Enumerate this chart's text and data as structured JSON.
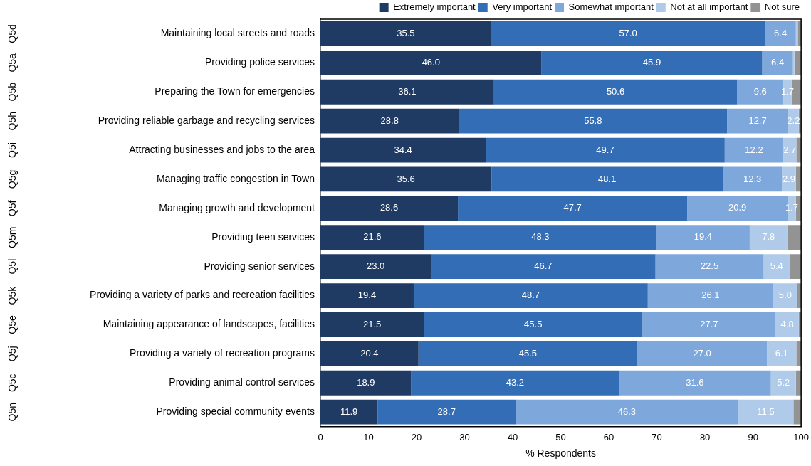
{
  "chart_data": {
    "type": "bar",
    "orientation": "horizontal",
    "stacked": true,
    "xlabel": "% Respondents",
    "categories": [
      "Maintaining local streets and roads",
      "Providing police services",
      "Preparing the Town for emergencies",
      "Providing reliable garbage and recycling services",
      "Attracting businesses and jobs to the area",
      "Managing traffic congestion in Town",
      "Managing growth and development",
      "Providing teen services",
      "Providing senior services",
      "Providing a variety of parks and recreation facilities",
      "Maintaining appearance of landscapes, facilities",
      "Providing a variety of recreation programs",
      "Providing animal control services",
      "Providing special community events"
    ],
    "series": [
      {
        "name": "Extremely important",
        "color": "#1f3a63",
        "values": [
          35.5,
          46.0,
          36.1,
          28.8,
          34.4,
          35.6,
          28.6,
          21.6,
          23.0,
          19.4,
          21.5,
          20.4,
          18.9,
          11.9
        ],
        "value_labels": [
          "35.5",
          "46.0",
          "36.1",
          "28.8",
          "34.4",
          "35.6",
          "28.6",
          "21.6",
          "23.0",
          "19.4",
          "21.5",
          "20.4",
          "18.9",
          "11.9"
        ]
      },
      {
        "name": "Very important",
        "color": "#336db5",
        "values": [
          57.0,
          45.9,
          50.6,
          55.8,
          49.7,
          48.1,
          47.7,
          48.3,
          46.7,
          48.7,
          45.5,
          45.5,
          43.2,
          28.7
        ],
        "value_labels": [
          "57.0",
          "45.9",
          "50.6",
          "55.8",
          "49.7",
          "48.1",
          "47.7",
          "48.3",
          "46.7",
          "48.7",
          "45.5",
          "45.5",
          "43.2",
          "28.7"
        ]
      },
      {
        "name": "Somewhat important",
        "color": "#7ea8dc",
        "values": [
          6.4,
          6.4,
          9.6,
          12.7,
          12.2,
          12.3,
          20.9,
          19.4,
          22.5,
          26.1,
          27.7,
          27.0,
          31.6,
          46.3
        ],
        "value_labels": [
          "6.4",
          "6.4",
          "9.6",
          "12.7",
          "12.2",
          "12.3",
          "20.9",
          "19.4",
          "22.5",
          "26.1",
          "27.7",
          "27.0",
          "31.6",
          "46.3"
        ]
      },
      {
        "name": "Not at all important",
        "color": "#b0cbe9",
        "values": [
          0.4,
          0.3,
          1.7,
          2.2,
          2.7,
          2.9,
          1.7,
          7.8,
          5.4,
          5.0,
          4.8,
          6.1,
          5.2,
          11.5
        ],
        "value_labels": [
          null,
          null,
          "1.7",
          "2.2",
          "2.7",
          "2.9",
          "1.7",
          "7.8",
          "5.4",
          "5.0",
          "4.8",
          "6.1",
          "5.2",
          "11.5"
        ]
      },
      {
        "name": "Not sure",
        "color": "#939393",
        "values": [
          0.7,
          1.4,
          2.0,
          0.5,
          1.0,
          1.1,
          1.1,
          2.9,
          2.4,
          0.8,
          0.5,
          1.0,
          1.1,
          1.6
        ]
      }
    ],
    "xlim": [
      0,
      100
    ],
    "xticks": [
      0,
      10,
      20,
      30,
      40,
      50,
      60,
      70,
      80,
      90,
      100
    ],
    "grid": false,
    "legend": "top right",
    "annotations": [
      "Q5d",
      "Q5a",
      "Q5b",
      "Q5h",
      "Q5i",
      "Q5g",
      "Q5f",
      "Q5m",
      "Q5l",
      "Q5k",
      "Q5e",
      "Q5j",
      "Q5c",
      "Q5n"
    ]
  }
}
